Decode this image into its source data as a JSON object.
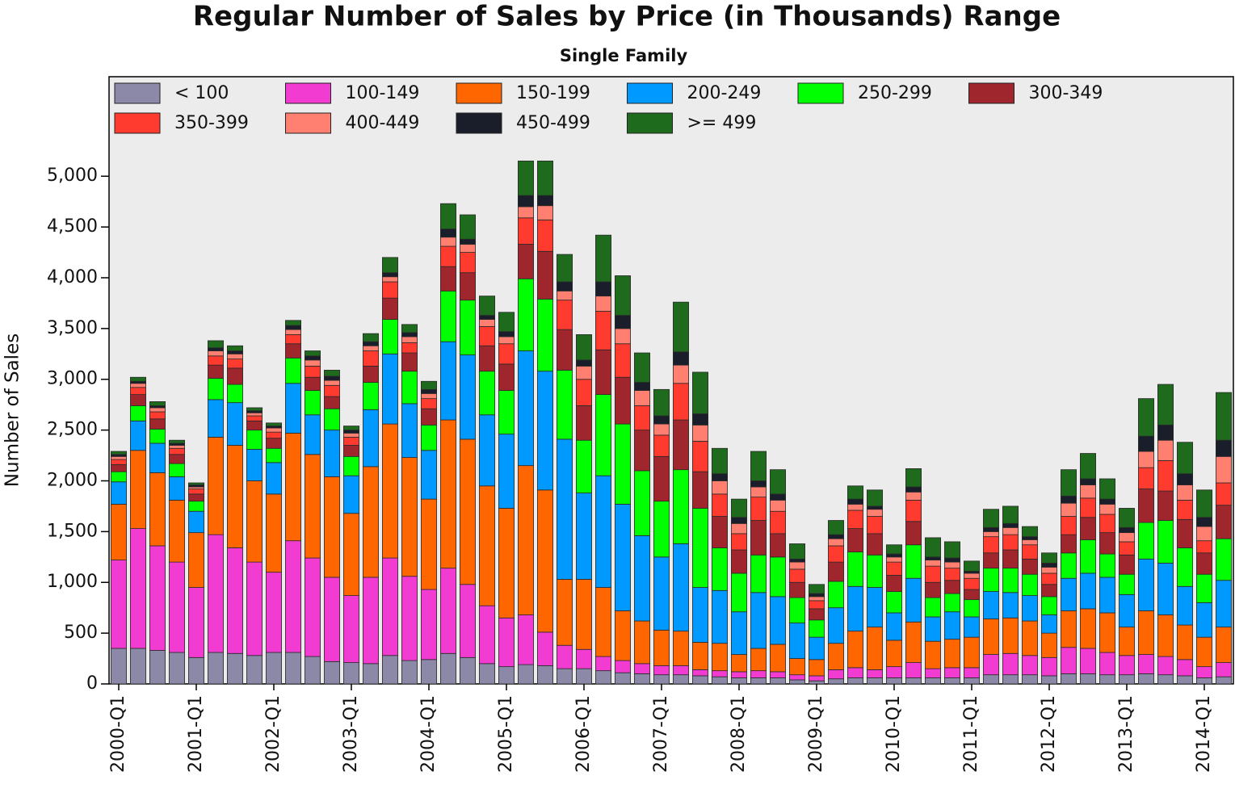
{
  "chart_data": {
    "type": "stacked_bar",
    "title": "Regular Number of Sales by Price (in Thousands) Range",
    "subtitle": "Single Family",
    "y_label": "Number of Sales",
    "legend": "top-left",
    "categories": [
      "2000-Q1",
      null,
      null,
      null,
      "2001-Q1",
      null,
      null,
      null,
      "2002-Q1",
      null,
      null,
      null,
      "2003-Q1",
      null,
      null,
      null,
      "2004-Q1",
      null,
      null,
      null,
      "2005-Q1",
      null,
      null,
      null,
      "2006-Q1",
      null,
      null,
      null,
      "2007-Q1",
      null,
      null,
      null,
      "2008-Q1",
      null,
      null,
      null,
      "2009-Q1",
      null,
      null,
      null,
      "2010-Q1",
      null,
      null,
      null,
      "2011-Q1",
      null,
      null,
      null,
      "2012-Q1",
      null,
      null,
      null,
      "2013-Q1",
      null,
      null,
      null,
      "2014-Q1",
      null
    ],
    "ylim": [
      0,
      5980
    ],
    "yticks": [
      0,
      500,
      {
        "value": 1000,
        "label": "1,000"
      },
      {
        "value": 1500,
        "label": "1,500"
      },
      {
        "value": 2000,
        "label": "2,000"
      },
      {
        "value": 2500,
        "label": "2,500"
      },
      {
        "value": 3000,
        "label": "3,000"
      },
      {
        "value": 3500,
        "label": "3,500"
      },
      {
        "value": 4000,
        "label": "4,000"
      },
      {
        "value": 4500,
        "label": "4,500"
      },
      {
        "value": 5000,
        "label": "5,000"
      }
    ],
    "series": [
      {
        "name": "< 100",
        "color": "#8c88a8",
        "values": [
          350,
          350,
          330,
          310,
          260,
          310,
          300,
          280,
          310,
          310,
          270,
          220,
          210,
          200,
          280,
          230,
          240,
          300,
          260,
          200,
          170,
          190,
          180,
          150,
          150,
          130,
          110,
          100,
          90,
          90,
          80,
          70,
          60,
          60,
          60,
          40,
          30,
          50,
          60,
          60,
          60,
          60,
          60,
          60,
          60,
          90,
          90,
          90,
          80,
          100,
          100,
          90,
          90,
          100,
          90,
          80,
          60,
          70
        ]
      },
      {
        "name": "100-149",
        "color": "#f23bd0",
        "values": [
          870,
          1180,
          1030,
          890,
          690,
          1160,
          1040,
          920,
          790,
          1100,
          970,
          830,
          660,
          850,
          960,
          830,
          690,
          840,
          720,
          570,
          480,
          490,
          330,
          230,
          190,
          140,
          120,
          100,
          90,
          90,
          60,
          60,
          60,
          70,
          60,
          50,
          50,
          90,
          100,
          80,
          110,
          150,
          90,
          100,
          100,
          200,
          210,
          190,
          180,
          260,
          250,
          220,
          190,
          190,
          180,
          160,
          110,
          140
        ]
      },
      {
        "name": "150-199",
        "color": "#ff6600",
        "values": [
          550,
          770,
          720,
          610,
          540,
          960,
          1010,
          800,
          770,
          1060,
          1020,
          990,
          810,
          1090,
          1320,
          1170,
          890,
          1460,
          1430,
          1180,
          1080,
          1470,
          1400,
          650,
          690,
          680,
          490,
          420,
          350,
          340,
          270,
          270,
          170,
          220,
          270,
          160,
          160,
          260,
          360,
          420,
          260,
          400,
          270,
          280,
          300,
          350,
          350,
          340,
          240,
          360,
          390,
          390,
          280,
          430,
          410,
          340,
          290,
          350
        ]
      },
      {
        "name": "200-249",
        "color": "#0099ff",
        "values": [
          220,
          290,
          290,
          230,
          210,
          370,
          420,
          310,
          310,
          490,
          390,
          460,
          370,
          560,
          690,
          530,
          480,
          770,
          830,
          700,
          730,
          1130,
          1170,
          1380,
          850,
          1100,
          1050,
          840,
          720,
          860,
          540,
          520,
          420,
          550,
          470,
          350,
          220,
          350,
          440,
          390,
          270,
          430,
          240,
          270,
          200,
          270,
          250,
          250,
          180,
          320,
          350,
          350,
          320,
          510,
          510,
          380,
          340,
          460
        ]
      },
      {
        "name": "250-299",
        "color": "#00ff00",
        "values": [
          100,
          150,
          140,
          130,
          100,
          210,
          180,
          190,
          140,
          250,
          240,
          210,
          190,
          270,
          340,
          320,
          250,
          500,
          540,
          430,
          430,
          710,
          710,
          680,
          520,
          800,
          790,
          640,
          550,
          730,
          780,
          420,
          380,
          370,
          390,
          250,
          170,
          260,
          340,
          320,
          210,
          330,
          190,
          180,
          170,
          230,
          240,
          210,
          180,
          250,
          330,
          230,
          200,
          360,
          420,
          380,
          280,
          410
        ]
      },
      {
        "name": "300-349",
        "color": "#a0262e",
        "values": [
          70,
          110,
          100,
          90,
          70,
          130,
          160,
          90,
          100,
          140,
          130,
          120,
          110,
          160,
          210,
          180,
          160,
          240,
          270,
          250,
          260,
          340,
          470,
          400,
          340,
          440,
          460,
          400,
          440,
          490,
          360,
          310,
          230,
          340,
          230,
          150,
          110,
          190,
          230,
          210,
          160,
          230,
          150,
          130,
          100,
          150,
          180,
          150,
          120,
          180,
          220,
          210,
          190,
          330,
          290,
          280,
          210,
          330
        ]
      },
      {
        "name": "350-399",
        "color": "#ff3b30",
        "values": [
          50,
          70,
          70,
          60,
          50,
          90,
          90,
          50,
          60,
          90,
          110,
          110,
          80,
          150,
          160,
          100,
          100,
          200,
          200,
          190,
          200,
          260,
          310,
          290,
          260,
          380,
          330,
          240,
          210,
          360,
          300,
          220,
          160,
          230,
          220,
          130,
          80,
          160,
          180,
          170,
          130,
          210,
          160,
          120,
          110,
          160,
          150,
          140,
          110,
          180,
          190,
          180,
          130,
          210,
          300,
          190,
          120,
          220
        ]
      },
      {
        "name": "400-449",
        "color": "#ff8070",
        "values": [
          30,
          40,
          40,
          30,
          20,
          50,
          50,
          30,
          40,
          50,
          60,
          50,
          40,
          50,
          50,
          60,
          50,
          90,
          80,
          70,
          70,
          110,
          140,
          90,
          130,
          150,
          150,
          150,
          110,
          180,
          160,
          130,
          100,
          100,
          110,
          70,
          40,
          70,
          60,
          70,
          50,
          80,
          60,
          60,
          50,
          50,
          70,
          50,
          60,
          130,
          130,
          100,
          90,
          160,
          200,
          150,
          140,
          260
        ]
      },
      {
        "name": "450-499",
        "color": "#1a1e2a",
        "values": [
          20,
          20,
          20,
          20,
          20,
          30,
          30,
          20,
          20,
          40,
          40,
          40,
          30,
          40,
          40,
          40,
          40,
          80,
          50,
          40,
          50,
          110,
          100,
          90,
          60,
          140,
          130,
          80,
          80,
          130,
          110,
          70,
          60,
          60,
          60,
          30,
          30,
          40,
          50,
          30,
          30,
          50,
          30,
          40,
          20,
          40,
          40,
          30,
          40,
          70,
          60,
          50,
          50,
          150,
          150,
          110,
          90,
          160
        ]
      },
      {
        "name": ">= 499",
        "color": "#1e6b1e",
        "values": [
          30,
          40,
          40,
          30,
          20,
          70,
          50,
          30,
          30,
          50,
          50,
          60,
          40,
          80,
          150,
          80,
          80,
          250,
          240,
          190,
          190,
          340,
          340,
          270,
          250,
          460,
          390,
          290,
          260,
          490,
          410,
          250,
          180,
          290,
          240,
          150,
          90,
          140,
          130,
          160,
          90,
          180,
          190,
          160,
          100,
          180,
          170,
          100,
          100,
          260,
          250,
          200,
          190,
          370,
          400,
          310,
          270,
          470
        ]
      }
    ]
  }
}
